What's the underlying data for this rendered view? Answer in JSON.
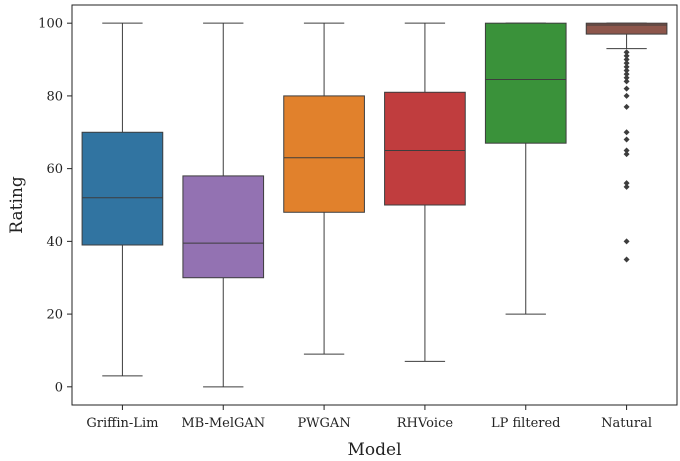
{
  "chart_data": {
    "type": "box",
    "title": "",
    "xlabel": "Model",
    "ylabel": "Rating",
    "ylim": [
      -5,
      105
    ],
    "y_ticks": [
      0,
      20,
      40,
      60,
      80,
      100
    ],
    "grid": false,
    "categories": [
      "Griffin-Lim",
      "MB-MelGAN",
      "PWGAN",
      "RHVoice",
      "LP filtered",
      "Natural"
    ],
    "boxes": [
      {
        "name": "Griffin-Lim",
        "color": "#3174a1",
        "whisker_low": 3,
        "q1": 39,
        "median": 52,
        "q3": 70,
        "whisker_high": 100,
        "outliers": []
      },
      {
        "name": "MB-MelGAN",
        "color": "#9372b2",
        "whisker_low": 0,
        "q1": 30,
        "median": 39.5,
        "q3": 58,
        "whisker_high": 100,
        "outliers": []
      },
      {
        "name": "PWGAN",
        "color": "#e1812c",
        "whisker_low": 9,
        "q1": 48,
        "median": 63,
        "q3": 80,
        "whisker_high": 100,
        "outliers": []
      },
      {
        "name": "RHVoice",
        "color": "#c03d3e",
        "whisker_low": 7,
        "q1": 50,
        "median": 65,
        "q3": 81,
        "whisker_high": 100,
        "outliers": []
      },
      {
        "name": "LP filtered",
        "color": "#3a923a",
        "whisker_low": 20,
        "q1": 67,
        "median": 84.5,
        "q3": 100,
        "whisker_high": 100,
        "outliers": []
      },
      {
        "name": "Natural",
        "color": "#8d564b",
        "whisker_low": 93,
        "q1": 97,
        "median": 99.5,
        "q3": 100,
        "whisker_high": 100,
        "outliers": [
          92,
          91,
          90,
          89,
          88,
          87,
          86,
          85,
          84,
          82,
          80,
          77,
          70,
          68,
          65,
          64,
          56,
          55,
          40,
          35
        ]
      }
    ]
  }
}
